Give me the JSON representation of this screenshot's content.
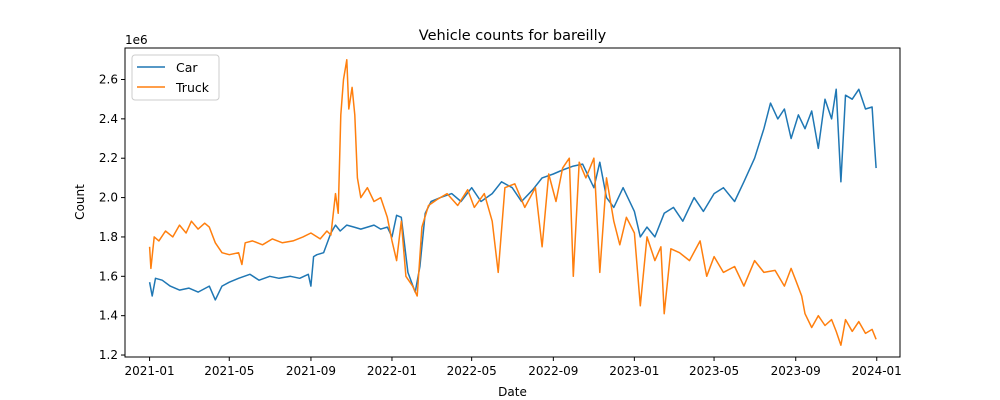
{
  "chart_data": {
    "type": "line",
    "title": "Vehicle counts for bareilly",
    "xlabel": "Date",
    "ylabel": "Count",
    "y_offset_label": "1e6",
    "x_ticks": [
      "2021-01",
      "2021-05",
      "2021-09",
      "2022-01",
      "2022-05",
      "2022-09",
      "2023-01",
      "2023-05",
      "2023-09",
      "2024-01"
    ],
    "y_ticks": [
      1.2,
      1.4,
      1.6,
      1.8,
      2.0,
      2.2,
      2.4,
      2.6
    ],
    "y_tick_labels": [
      "1.2",
      "1.4",
      "1.6",
      "1.8",
      "2.0",
      "2.2",
      "2.4",
      "2.6"
    ],
    "ylim": [
      1.19,
      2.76
    ],
    "xlim": [
      "2020-11-25",
      "2024-02-05"
    ],
    "y_scale": 1000000,
    "grid": false,
    "legend_position": "upper-left",
    "series": [
      {
        "name": "Car",
        "color": "#1f77b4",
        "points": [
          [
            "2021-01-01",
            1.57
          ],
          [
            "2021-01-05",
            1.5
          ],
          [
            "2021-01-10",
            1.59
          ],
          [
            "2021-01-20",
            1.58
          ],
          [
            "2021-02-01",
            1.55
          ],
          [
            "2021-02-15",
            1.53
          ],
          [
            "2021-03-01",
            1.54
          ],
          [
            "2021-03-15",
            1.52
          ],
          [
            "2021-04-01",
            1.55
          ],
          [
            "2021-04-10",
            1.48
          ],
          [
            "2021-04-20",
            1.55
          ],
          [
            "2021-05-01",
            1.57
          ],
          [
            "2021-05-15",
            1.59
          ],
          [
            "2021-06-01",
            1.61
          ],
          [
            "2021-06-15",
            1.58
          ],
          [
            "2021-07-01",
            1.6
          ],
          [
            "2021-07-15",
            1.59
          ],
          [
            "2021-08-01",
            1.6
          ],
          [
            "2021-08-15",
            1.59
          ],
          [
            "2021-08-28",
            1.61
          ],
          [
            "2021-09-01",
            1.55
          ],
          [
            "2021-09-05",
            1.7
          ],
          [
            "2021-09-10",
            1.71
          ],
          [
            "2021-09-20",
            1.72
          ],
          [
            "2021-10-01",
            1.82
          ],
          [
            "2021-10-08",
            1.86
          ],
          [
            "2021-10-15",
            1.83
          ],
          [
            "2021-10-25",
            1.86
          ],
          [
            "2021-11-05",
            1.85
          ],
          [
            "2021-11-15",
            1.84
          ],
          [
            "2021-11-25",
            1.85
          ],
          [
            "2021-12-05",
            1.86
          ],
          [
            "2021-12-15",
            1.84
          ],
          [
            "2021-12-25",
            1.85
          ],
          [
            "2022-01-01",
            1.8
          ],
          [
            "2022-01-08",
            1.91
          ],
          [
            "2022-01-15",
            1.9
          ],
          [
            "2022-01-25",
            1.62
          ],
          [
            "2022-02-05",
            1.52
          ],
          [
            "2022-02-12",
            1.65
          ],
          [
            "2022-02-20",
            1.92
          ],
          [
            "2022-03-01",
            1.98
          ],
          [
            "2022-03-15",
            2.0
          ],
          [
            "2022-04-01",
            2.02
          ],
          [
            "2022-04-15",
            1.98
          ],
          [
            "2022-05-01",
            2.05
          ],
          [
            "2022-05-15",
            1.98
          ],
          [
            "2022-06-01",
            2.02
          ],
          [
            "2022-06-15",
            2.08
          ],
          [
            "2022-07-01",
            2.05
          ],
          [
            "2022-07-15",
            1.98
          ],
          [
            "2022-08-01",
            2.04
          ],
          [
            "2022-08-15",
            2.1
          ],
          [
            "2022-09-01",
            2.12
          ],
          [
            "2022-09-15",
            2.14
          ],
          [
            "2022-10-01",
            2.16
          ],
          [
            "2022-10-15",
            2.17
          ],
          [
            "2022-11-01",
            2.05
          ],
          [
            "2022-11-10",
            2.18
          ],
          [
            "2022-11-20",
            2.0
          ],
          [
            "2022-12-01",
            1.95
          ],
          [
            "2022-12-15",
            2.05
          ],
          [
            "2023-01-01",
            1.93
          ],
          [
            "2023-01-10",
            1.8
          ],
          [
            "2023-01-20",
            1.85
          ],
          [
            "2023-02-01",
            1.8
          ],
          [
            "2023-02-15",
            1.92
          ],
          [
            "2023-03-01",
            1.95
          ],
          [
            "2023-03-15",
            1.88
          ],
          [
            "2023-04-01",
            2.0
          ],
          [
            "2023-04-15",
            1.93
          ],
          [
            "2023-05-01",
            2.02
          ],
          [
            "2023-05-15",
            2.05
          ],
          [
            "2023-06-01",
            1.98
          ],
          [
            "2023-06-15",
            2.08
          ],
          [
            "2023-07-01",
            2.2
          ],
          [
            "2023-07-15",
            2.35
          ],
          [
            "2023-07-25",
            2.48
          ],
          [
            "2023-08-05",
            2.4
          ],
          [
            "2023-08-15",
            2.45
          ],
          [
            "2023-08-25",
            2.3
          ],
          [
            "2023-09-05",
            2.42
          ],
          [
            "2023-09-15",
            2.35
          ],
          [
            "2023-09-25",
            2.44
          ],
          [
            "2023-10-05",
            2.25
          ],
          [
            "2023-10-15",
            2.5
          ],
          [
            "2023-10-25",
            2.4
          ],
          [
            "2023-11-01",
            2.55
          ],
          [
            "2023-11-08",
            2.08
          ],
          [
            "2023-11-15",
            2.52
          ],
          [
            "2023-11-25",
            2.5
          ],
          [
            "2023-12-05",
            2.55
          ],
          [
            "2023-12-15",
            2.45
          ],
          [
            "2023-12-25",
            2.46
          ],
          [
            "2023-12-28",
            2.3
          ],
          [
            "2023-12-31",
            2.15
          ]
        ]
      },
      {
        "name": "Truck",
        "color": "#ff7f0e",
        "points": [
          [
            "2021-01-01",
            1.75
          ],
          [
            "2021-01-03",
            1.64
          ],
          [
            "2021-01-08",
            1.8
          ],
          [
            "2021-01-15",
            1.78
          ],
          [
            "2021-01-25",
            1.83
          ],
          [
            "2021-02-05",
            1.8
          ],
          [
            "2021-02-15",
            1.86
          ],
          [
            "2021-02-25",
            1.82
          ],
          [
            "2021-03-05",
            1.88
          ],
          [
            "2021-03-15",
            1.84
          ],
          [
            "2021-03-25",
            1.87
          ],
          [
            "2021-04-01",
            1.85
          ],
          [
            "2021-04-10",
            1.77
          ],
          [
            "2021-04-20",
            1.72
          ],
          [
            "2021-05-01",
            1.71
          ],
          [
            "2021-05-15",
            1.72
          ],
          [
            "2021-05-20",
            1.66
          ],
          [
            "2021-05-25",
            1.77
          ],
          [
            "2021-06-05",
            1.78
          ],
          [
            "2021-06-20",
            1.76
          ],
          [
            "2021-07-05",
            1.79
          ],
          [
            "2021-07-20",
            1.77
          ],
          [
            "2021-08-05",
            1.78
          ],
          [
            "2021-08-20",
            1.8
          ],
          [
            "2021-09-01",
            1.82
          ],
          [
            "2021-09-15",
            1.79
          ],
          [
            "2021-09-25",
            1.83
          ],
          [
            "2021-10-01",
            1.81
          ],
          [
            "2021-10-08",
            2.02
          ],
          [
            "2021-10-12",
            1.92
          ],
          [
            "2021-10-16",
            2.42
          ],
          [
            "2021-10-20",
            2.6
          ],
          [
            "2021-10-25",
            2.7
          ],
          [
            "2021-10-28",
            2.45
          ],
          [
            "2021-11-02",
            2.56
          ],
          [
            "2021-11-06",
            2.42
          ],
          [
            "2021-11-10",
            2.1
          ],
          [
            "2021-11-15",
            2.0
          ],
          [
            "2021-11-25",
            2.05
          ],
          [
            "2021-12-05",
            1.98
          ],
          [
            "2021-12-15",
            2.0
          ],
          [
            "2021-12-25",
            1.9
          ],
          [
            "2022-01-01",
            1.78
          ],
          [
            "2022-01-08",
            1.68
          ],
          [
            "2022-01-15",
            1.88
          ],
          [
            "2022-01-22",
            1.6
          ],
          [
            "2022-02-01",
            1.55
          ],
          [
            "2022-02-08",
            1.5
          ],
          [
            "2022-02-15",
            1.85
          ],
          [
            "2022-02-25",
            1.96
          ],
          [
            "2022-03-10",
            1.99
          ],
          [
            "2022-03-25",
            2.02
          ],
          [
            "2022-04-10",
            1.96
          ],
          [
            "2022-04-25",
            2.04
          ],
          [
            "2022-05-05",
            1.95
          ],
          [
            "2022-05-20",
            2.02
          ],
          [
            "2022-06-01",
            1.88
          ],
          [
            "2022-06-10",
            1.62
          ],
          [
            "2022-06-20",
            2.05
          ],
          [
            "2022-07-05",
            2.07
          ],
          [
            "2022-07-20",
            1.95
          ],
          [
            "2022-08-05",
            2.05
          ],
          [
            "2022-08-15",
            1.75
          ],
          [
            "2022-08-25",
            2.12
          ],
          [
            "2022-09-05",
            1.98
          ],
          [
            "2022-09-15",
            2.15
          ],
          [
            "2022-09-25",
            2.2
          ],
          [
            "2022-10-01",
            1.6
          ],
          [
            "2022-10-10",
            2.18
          ],
          [
            "2022-10-20",
            2.1
          ],
          [
            "2022-11-01",
            2.2
          ],
          [
            "2022-11-10",
            1.62
          ],
          [
            "2022-11-20",
            2.1
          ],
          [
            "2022-12-01",
            1.88
          ],
          [
            "2022-12-10",
            1.76
          ],
          [
            "2022-12-20",
            1.9
          ],
          [
            "2023-01-01",
            1.82
          ],
          [
            "2023-01-10",
            1.45
          ],
          [
            "2023-01-20",
            1.8
          ],
          [
            "2023-02-01",
            1.68
          ],
          [
            "2023-02-10",
            1.75
          ],
          [
            "2023-02-15",
            1.41
          ],
          [
            "2023-02-25",
            1.74
          ],
          [
            "2023-03-10",
            1.72
          ],
          [
            "2023-03-25",
            1.68
          ],
          [
            "2023-04-10",
            1.78
          ],
          [
            "2023-04-20",
            1.6
          ],
          [
            "2023-05-01",
            1.7
          ],
          [
            "2023-05-15",
            1.62
          ],
          [
            "2023-06-01",
            1.65
          ],
          [
            "2023-06-15",
            1.55
          ],
          [
            "2023-07-01",
            1.68
          ],
          [
            "2023-07-15",
            1.62
          ],
          [
            "2023-08-01",
            1.63
          ],
          [
            "2023-08-15",
            1.55
          ],
          [
            "2023-08-25",
            1.64
          ],
          [
            "2023-09-01",
            1.58
          ],
          [
            "2023-09-10",
            1.5
          ],
          [
            "2023-09-15",
            1.41
          ],
          [
            "2023-09-25",
            1.34
          ],
          [
            "2023-10-05",
            1.4
          ],
          [
            "2023-10-15",
            1.35
          ],
          [
            "2023-10-25",
            1.38
          ],
          [
            "2023-11-01",
            1.32
          ],
          [
            "2023-11-08",
            1.25
          ],
          [
            "2023-11-15",
            1.38
          ],
          [
            "2023-11-25",
            1.32
          ],
          [
            "2023-12-05",
            1.37
          ],
          [
            "2023-12-15",
            1.31
          ],
          [
            "2023-12-25",
            1.33
          ],
          [
            "2023-12-31",
            1.28
          ]
        ]
      }
    ]
  }
}
